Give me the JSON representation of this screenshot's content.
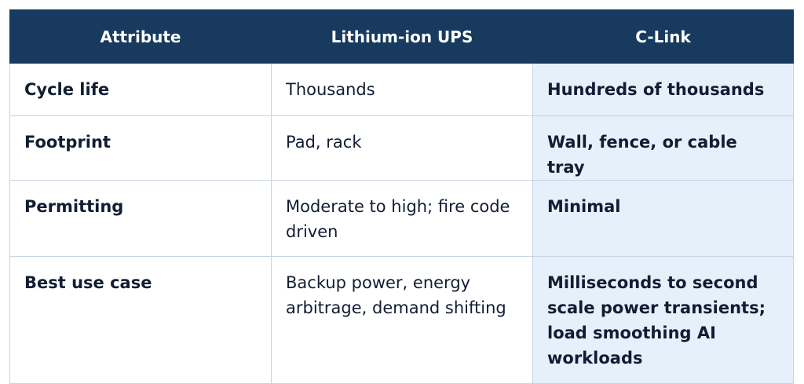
{
  "table": {
    "headers": [
      "Attribute",
      "Lithium-ion UPS",
      "C-Link"
    ],
    "rows": [
      {
        "attribute": "Cycle life",
        "lithium_ion": "Thousands",
        "c_link": "Hundreds of thousands"
      },
      {
        "attribute": "Footprint",
        "lithium_ion": "Pad, rack",
        "c_link": "Wall, fence, or cable tray"
      },
      {
        "attribute": "Permitting",
        "lithium_ion": "Moderate to high; fire code driven",
        "c_link": "Minimal"
      },
      {
        "attribute": "Best use case",
        "lithium_ion": "Backup power, energy arbitrage, demand shifting",
        "c_link": "Milliseconds to second scale power transients; load smoothing AI workloads"
      }
    ]
  }
}
